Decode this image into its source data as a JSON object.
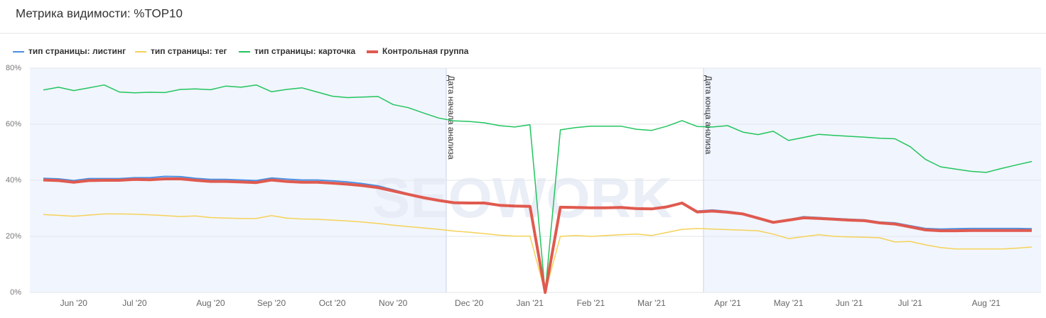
{
  "chart_data": {
    "type": "line",
    "title": "Метрика видимости: %TOP10",
    "watermark": "SEOWORK",
    "annotations": [
      {
        "text": "Дата начала анализа"
      },
      {
        "text": "Дата конца анализа"
      }
    ],
    "categories": [
      null,
      null,
      "Jun '20",
      null,
      null,
      null,
      "Jul '20",
      null,
      null,
      null,
      null,
      "Aug '20",
      null,
      null,
      null,
      "Sep '20",
      null,
      null,
      null,
      "Oct '20",
      null,
      null,
      null,
      "Nov '20",
      null,
      null,
      null,
      null,
      "Dec '20",
      null,
      null,
      null,
      "Jan '21",
      null,
      null,
      null,
      "Feb '21",
      null,
      null,
      null,
      "Mar '21",
      null,
      null,
      null,
      null,
      "Apr '21",
      null,
      null,
      null,
      "May '21",
      null,
      null,
      null,
      "Jun '21",
      null,
      null,
      null,
      "Jul '21",
      null,
      null,
      null,
      null,
      "Aug '21",
      null,
      null,
      null
    ],
    "ylim": [
      0,
      80
    ],
    "yticks": [
      {
        "value": 0,
        "label": "0%"
      },
      {
        "value": 20,
        "label": "20%"
      },
      {
        "value": 40,
        "label": "40%"
      },
      {
        "value": 60,
        "label": "60%"
      },
      {
        "value": 80,
        "label": "80%"
      }
    ],
    "grid": true,
    "legend": "top-left",
    "series": [
      {
        "name": "тип страницы: листинг",
        "color": "#4a90e2",
        "line_width": 2,
        "values": [
          40.7,
          40.5,
          39.9,
          40.6,
          40.6,
          40.6,
          40.9,
          40.9,
          41.4,
          41.3,
          40.7,
          40.3,
          40.3,
          40.1,
          39.9,
          40.8,
          40.4,
          40.1,
          40.1,
          39.8,
          39.4,
          38.8,
          38.0,
          36.6,
          35.2,
          34.0,
          33.0,
          32.2,
          32.0,
          32.0,
          31.2,
          30.9,
          30.8,
          0,
          30.4,
          30.4,
          30.3,
          30.3,
          30.4,
          30.0,
          29.6,
          30.8,
          32.0,
          29.0,
          29.4,
          28.9,
          28.2,
          26.7,
          25.2,
          26.0,
          27.0,
          26.7,
          26.4,
          26.1,
          25.9,
          25.1,
          24.8,
          23.8,
          22.8,
          22.6,
          22.7,
          22.8,
          22.8,
          22.8,
          22.8,
          22.7
        ]
      },
      {
        "name": "тип страницы: тег",
        "color": "#f5d25a",
        "line_width": 1.5,
        "values": [
          27.8,
          27.5,
          27.2,
          27.6,
          28,
          28,
          27.9,
          27.7,
          27.4,
          27.1,
          27.3,
          26.7,
          26.5,
          26.4,
          26.4,
          27.4,
          26.5,
          26.2,
          26.1,
          25.8,
          25.5,
          25.1,
          24.6,
          24.0,
          23.5,
          23.0,
          22.5,
          21.9,
          21.5,
          21.0,
          20.4,
          20.1,
          20.1,
          0,
          20.0,
          20.3,
          20.0,
          20.3,
          20.6,
          20.8,
          20.3,
          21.4,
          22.5,
          22.8,
          22.6,
          22.4,
          22.2,
          22.0,
          20.8,
          19.2,
          19.9,
          20.6,
          20.0,
          19.8,
          19.7,
          19.5,
          18.0,
          18.2,
          17.0,
          16.0,
          15.5,
          15.5,
          15.5,
          15.5,
          15.8,
          16.2
        ]
      },
      {
        "name": "тип страницы: карточка",
        "color": "#22c55e",
        "line_width": 1.5,
        "values": [
          72.2,
          73.2,
          72.0,
          73.0,
          74.0,
          71.5,
          71.2,
          71.4,
          71.3,
          72.4,
          72.6,
          72.3,
          73.6,
          73.2,
          74.0,
          71.6,
          72.4,
          73.0,
          71.5,
          70.0,
          69.5,
          69.7,
          69.9,
          67.0,
          65.9,
          64.0,
          62.2,
          61.2,
          61.0,
          60.5,
          59.5,
          59.0,
          59.8,
          0,
          58.0,
          58.8,
          59.3,
          59.3,
          59.3,
          58.2,
          57.8,
          59.3,
          61.3,
          59.2,
          59.0,
          59.5,
          57.2,
          56.3,
          57.5,
          54.2,
          55.3,
          56.4,
          56.0,
          55.7,
          55.4,
          55.0,
          54.8,
          52.0,
          47.5,
          44.8,
          44.0,
          43.2,
          42.8,
          44.2,
          45.5,
          46.7
        ]
      },
      {
        "name": "Контрольная группа",
        "color": "#e05a4f",
        "line_width": 4,
        "values": [
          40.1,
          39.9,
          39.3,
          39.9,
          40.0,
          40.0,
          40.3,
          40.2,
          40.5,
          40.5,
          40.0,
          39.6,
          39.6,
          39.4,
          39.2,
          40.1,
          39.6,
          39.3,
          39.3,
          39.0,
          38.6,
          38.1,
          37.4,
          36.2,
          35.0,
          33.8,
          32.8,
          32.0,
          31.9,
          31.9,
          31.1,
          30.8,
          30.7,
          0,
          30.4,
          30.3,
          30.2,
          30.2,
          30.3,
          29.9,
          29.8,
          30.5,
          31.9,
          28.7,
          29.0,
          28.6,
          28.0,
          26.5,
          25.0,
          25.8,
          26.6,
          26.4,
          26.1,
          25.8,
          25.6,
          24.8,
          24.4,
          23.4,
          22.3,
          22.0,
          22.0,
          22.1,
          22.1,
          22.1,
          22.1,
          22.1
        ]
      }
    ]
  }
}
